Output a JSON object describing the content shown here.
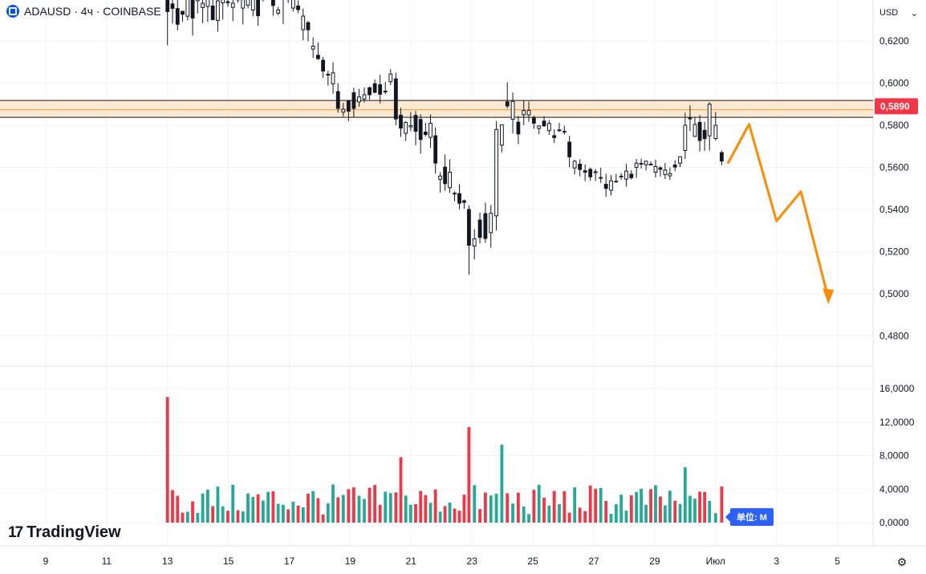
{
  "header": {
    "symbol_line": "ADAUSD · 4ч · COINBASE",
    "logo_icon": "coinbase-logo-icon"
  },
  "currency_selector": {
    "value": "USD",
    "icon": "chevron-down-icon"
  },
  "branding": {
    "mark": "17",
    "name": "TradingView"
  },
  "volume_unit_label": "单位: M",
  "colors": {
    "up": "#089981",
    "down": "#f23645",
    "volume_up": "#22ab94",
    "volume_down": "#f23645",
    "zone_fill": "#fde3c4",
    "zone_line": "#ff9a3c",
    "price_badge": "#f23645",
    "forecast": "#ff8c00",
    "unit_badge": "#2962ff"
  },
  "chart_data": [
    {
      "type": "candlestick",
      "price_axis": {
        "ticks": [
          "0,6200",
          "0,6000",
          "0,5800",
          "0,5600",
          "0,5400",
          "0,5200",
          "0,5000",
          "0,4800"
        ],
        "tick_values": [
          0.62,
          0.6,
          0.58,
          0.56,
          0.54,
          0.52,
          0.5,
          0.48
        ],
        "range": [
          0.466,
          0.6395
        ]
      },
      "x_axis": {
        "ticks": [
          "9",
          "11",
          "13",
          "15",
          "17",
          "19",
          "21",
          "23",
          "25",
          "27",
          "29",
          "Июл",
          "3",
          "5"
        ],
        "tick_days": [
          9,
          11,
          13,
          15,
          17,
          19,
          21,
          23,
          25,
          27,
          29,
          31,
          33,
          35
        ],
        "range_days": [
          7.5,
          36.17
        ],
        "unit": "day of month (Jun); Июл = Jul 1"
      },
      "current_price": {
        "label": "0,5890",
        "value": 0.589
      },
      "resistance_zone": {
        "upper": 0.5918,
        "mid": 0.5874,
        "lower": 0.5838
      },
      "anchor_candles": [
        {
          "day": 13.0,
          "open": 0.645,
          "high": 0.65,
          "low": 0.618,
          "close": 0.634
        },
        {
          "day": 16.8,
          "open": 0.64,
          "high": 0.65,
          "low": 0.628,
          "close": 0.648
        },
        {
          "day": 18.6,
          "open": 0.596,
          "high": 0.6,
          "low": 0.586,
          "close": 0.588
        },
        {
          "day": 20.5,
          "open": 0.602,
          "high": 0.605,
          "low": 0.58,
          "close": 0.583
        },
        {
          "day": 21.8,
          "open": 0.575,
          "high": 0.579,
          "low": 0.557,
          "close": 0.562
        },
        {
          "day": 22.9,
          "open": 0.54,
          "high": 0.542,
          "low": 0.509,
          "close": 0.523
        },
        {
          "day": 23.8,
          "open": 0.537,
          "high": 0.582,
          "low": 0.53,
          "close": 0.578
        },
        {
          "day": 24.7,
          "open": 0.585,
          "high": 0.592,
          "low": 0.58,
          "close": 0.587
        },
        {
          "day": 26.2,
          "open": 0.572,
          "high": 0.575,
          "low": 0.56,
          "close": 0.565
        },
        {
          "day": 27.4,
          "open": 0.552,
          "high": 0.557,
          "low": 0.546,
          "close": 0.55
        },
        {
          "day": 28.4,
          "open": 0.56,
          "high": 0.564,
          "low": 0.555,
          "close": 0.562
        },
        {
          "day": 29.5,
          "open": 0.556,
          "high": 0.56,
          "low": 0.554,
          "close": 0.557
        },
        {
          "day": 30.0,
          "open": 0.568,
          "high": 0.586,
          "low": 0.564,
          "close": 0.58
        },
        {
          "day": 30.8,
          "open": 0.575,
          "high": 0.591,
          "low": 0.568,
          "close": 0.59
        },
        {
          "day": 31.2,
          "open": 0.567,
          "high": 0.568,
          "low": 0.561,
          "close": 0.563
        }
      ],
      "forecast_path": [
        {
          "day": 31.4,
          "price": 0.5618
        },
        {
          "day": 32.1,
          "price": 0.5805
        },
        {
          "day": 33.0,
          "price": 0.5345
        },
        {
          "day": 33.8,
          "price": 0.5485
        },
        {
          "day": 34.7,
          "price": 0.498
        }
      ]
    },
    {
      "type": "bar",
      "title": "Volume",
      "y_axis": {
        "ticks": [
          "16,0000",
          "12,0000",
          "8,0000",
          "4,0000",
          "0,0000"
        ],
        "tick_values": [
          16,
          12,
          8,
          4,
          0
        ],
        "range": [
          0,
          18.3
        ]
      },
      "spikes": [
        {
          "day": 13.0,
          "value": 15.0,
          "direction": "down"
        },
        {
          "day": 20.7,
          "value": 7.8,
          "direction": "down"
        },
        {
          "day": 22.8,
          "value": 11.4,
          "direction": "down"
        },
        {
          "day": 24.0,
          "value": 9.3,
          "direction": "up"
        },
        {
          "day": 30.0,
          "value": 6.6,
          "direction": "up"
        }
      ]
    }
  ]
}
